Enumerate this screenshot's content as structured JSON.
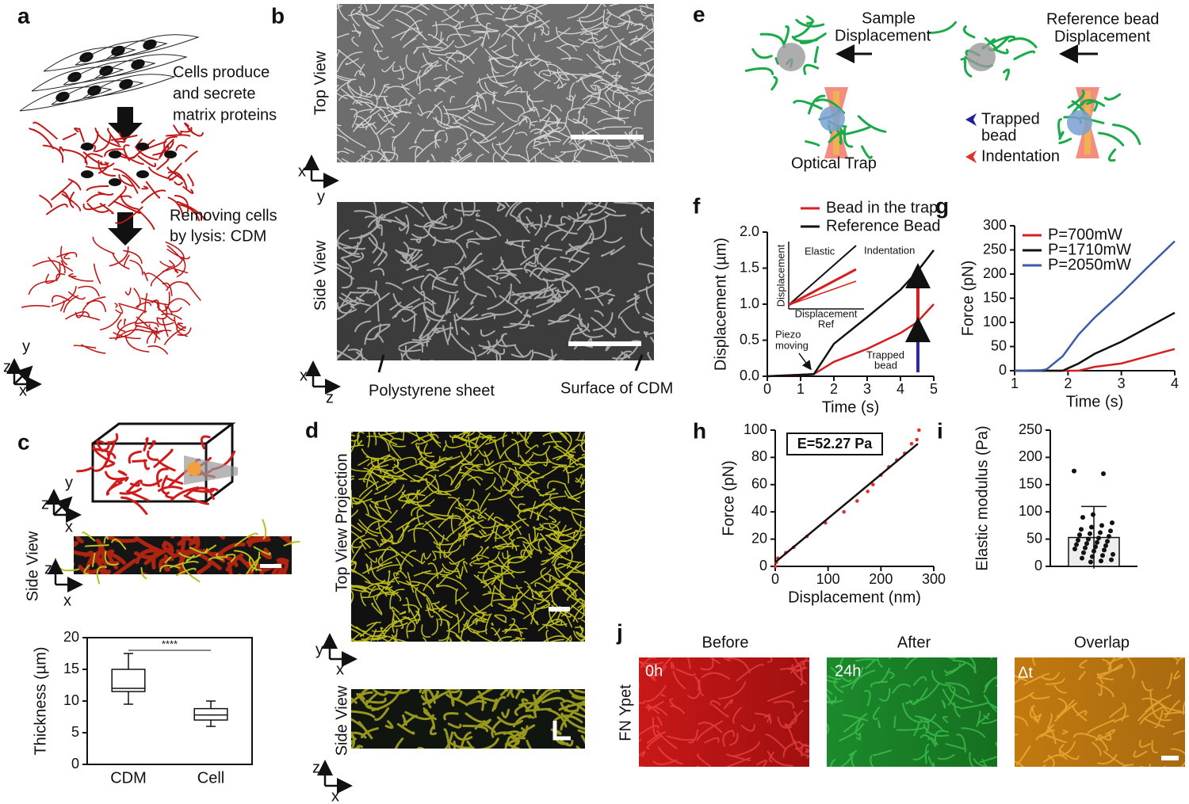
{
  "panel_labels": [
    "a",
    "b",
    "c",
    "d",
    "e",
    "f",
    "g",
    "h",
    "i",
    "j"
  ],
  "a": {
    "steps": [
      "Cells produce",
      "and secrete",
      "matrix proteins",
      "Removing cells",
      "by lysis: CDM"
    ],
    "axes": [
      "z",
      "y",
      "x"
    ]
  },
  "b": {
    "top_view": "Top View",
    "side_view": "Side View",
    "top_axes": [
      "x",
      "y"
    ],
    "side_axes": [
      "x",
      "z"
    ],
    "annotations": [
      "Polystyrene sheet",
      "Surface of CDM"
    ]
  },
  "c": {
    "side_view": "Side View",
    "axes3d": [
      "z",
      "y",
      "x"
    ],
    "axes": [
      "z",
      "x"
    ]
  },
  "d": {
    "top_view": "Top View Projection",
    "side_view": "Side View",
    "top_axes": [
      "y",
      "x"
    ],
    "side_axes": [
      "z",
      "x"
    ]
  },
  "e": {
    "sample": [
      "Sample",
      "Displacement"
    ],
    "reference": [
      "Reference bead",
      "Displacement"
    ],
    "optical_trap": "Optical Trap",
    "legend": [
      "Trapped",
      "bead",
      "Indentation"
    ]
  },
  "j": {
    "columns": [
      "Before",
      "After",
      "Overlap"
    ],
    "times": [
      "0h",
      "24h",
      "Δt"
    ],
    "row_label": "FN Ypet"
  },
  "chart_data": [
    {
      "type": "box",
      "ylabel": "Thickness (µm)",
      "categories": [
        "CDM",
        "Cell"
      ],
      "boxes": [
        {
          "min": 9.5,
          "q1": 11.5,
          "median": 12,
          "q3": 15,
          "max": 17.5
        },
        {
          "min": 6,
          "q1": 7,
          "median": 7.8,
          "q3": 8.8,
          "max": 10
        }
      ],
      "ylim": [
        0,
        20
      ],
      "yticks": [
        0,
        5,
        10,
        15,
        20
      ],
      "annotation": "****"
    },
    {
      "type": "line",
      "xlabel": "Time (s)",
      "ylabel": "Displacement (µm)",
      "x": [
        0,
        1,
        1.4,
        2,
        3,
        4,
        4.5,
        5
      ],
      "series": [
        {
          "name": "Bead in the trap",
          "color": "#d42020",
          "values": [
            0,
            0.02,
            0.03,
            0.2,
            0.38,
            0.6,
            0.75,
            1.0
          ]
        },
        {
          "name": "Reference Bead",
          "color": "#111111",
          "values": [
            0,
            0.02,
            0.03,
            0.45,
            0.82,
            1.2,
            1.45,
            1.75
          ]
        }
      ],
      "xlim": [
        0,
        5
      ],
      "ylim": [
        0,
        2
      ],
      "xticks": [
        0,
        1,
        2,
        3,
        4,
        5
      ],
      "yticks": [
        {
          "value": 0,
          "label": "0.0"
        },
        0.5,
        {
          "value": 1,
          "label": "1.0"
        },
        1.5,
        {
          "value": 2,
          "label": "2.0"
        }
      ],
      "annotations": [
        "Piezo",
        "moving",
        "Trapped",
        "bead",
        "Indentation"
      ],
      "inset": {
        "labels": [
          "Elastic",
          "Displacement",
          "Displacement",
          "Ref"
        ]
      }
    },
    {
      "type": "line",
      "xlabel": "Time (s)",
      "ylabel": "Force (pN)",
      "x": [
        1,
        1.5,
        1.6,
        1.9,
        2,
        2.2,
        2.5,
        3,
        3.5,
        4
      ],
      "series": [
        {
          "name": "P=700mW",
          "color": "#d42020",
          "values": [
            0,
            0,
            0,
            0,
            0,
            0,
            8,
            15,
            30,
            45
          ]
        },
        {
          "name": "P=1710mW",
          "color": "#111111",
          "values": [
            0,
            0,
            0,
            0,
            5,
            15,
            35,
            60,
            90,
            120
          ]
        },
        {
          "name": "P=2050mW",
          "color": "#3a5ba8",
          "values": [
            0,
            1,
            3,
            30,
            45,
            75,
            110,
            160,
            215,
            268
          ]
        }
      ],
      "xlim": [
        1,
        4
      ],
      "ylim": [
        0,
        300
      ],
      "xticks": [
        1,
        2,
        3,
        4
      ],
      "yticks": [
        0,
        50,
        100,
        150,
        200,
        250,
        300
      ],
      "legend": "upper-left"
    },
    {
      "type": "scatter",
      "xlabel": "Displacement (nm)",
      "ylabel": "Force (pN)",
      "x": [
        0,
        2,
        5,
        20,
        35,
        60,
        95,
        130,
        155,
        175,
        185,
        200,
        215,
        230,
        245,
        258,
        268,
        272
      ],
      "values": [
        0,
        3,
        6,
        10,
        14,
        22,
        32,
        40,
        48,
        55,
        60,
        67,
        73,
        78,
        83,
        90,
        93,
        100
      ],
      "color": "#e03030",
      "fit": {
        "x": [
          0,
          270
        ],
        "values": [
          3,
          90
        ]
      },
      "xlim": [
        0,
        300
      ],
      "ylim": [
        0,
        100
      ],
      "xticks": [
        0,
        100,
        200,
        300
      ],
      "yticks": [
        0,
        20,
        40,
        60,
        80,
        100
      ],
      "annotation": "E=52.27 Pa"
    },
    {
      "type": "bar",
      "ylabel": "Elastic modulus (Pa)",
      "values": [
        53
      ],
      "errors": [
        57
      ],
      "points": [
        175,
        170,
        95,
        90,
        80,
        75,
        72,
        68,
        65,
        62,
        60,
        58,
        55,
        52,
        50,
        48,
        46,
        44,
        42,
        40,
        38,
        36,
        34,
        32,
        30,
        28,
        25,
        22,
        20,
        18,
        15,
        12,
        10,
        8
      ],
      "ylim": [
        0,
        250
      ],
      "yticks": [
        0,
        50,
        100,
        150,
        200,
        250
      ]
    }
  ]
}
